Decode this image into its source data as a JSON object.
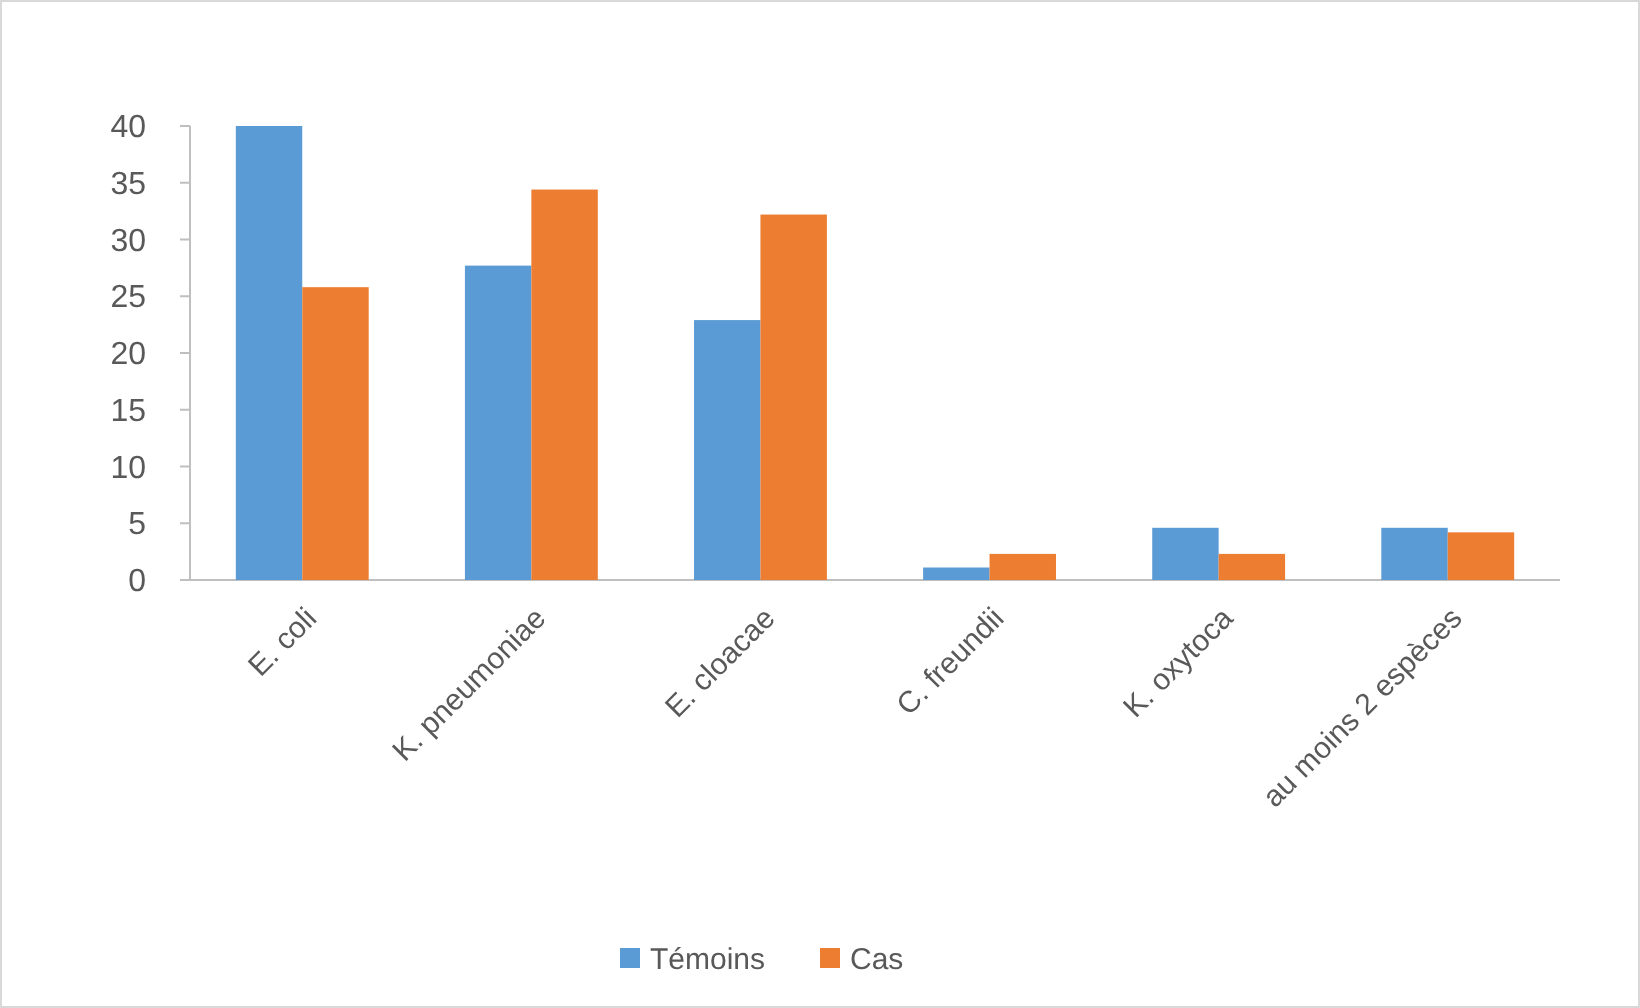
{
  "chart_data": {
    "type": "bar",
    "categories": [
      "E. coli",
      "K. pneumoniae",
      "E. cloacae",
      "C. freundii",
      "K. oxytoca",
      "au moins 2 espèces"
    ],
    "series": [
      {
        "name": "Témoins",
        "color": "#5b9bd5",
        "values": [
          40,
          27.7,
          22.9,
          1.1,
          4.6,
          4.6
        ]
      },
      {
        "name": "Cas",
        "color": "#ed7d31",
        "values": [
          25.8,
          34.4,
          32.2,
          2.3,
          2.3,
          4.2
        ]
      }
    ],
    "ylim": [
      0,
      40
    ],
    "yticks": [
      0,
      5,
      10,
      15,
      20,
      25,
      30,
      35,
      40
    ],
    "grid": false,
    "legend": "bottom"
  }
}
